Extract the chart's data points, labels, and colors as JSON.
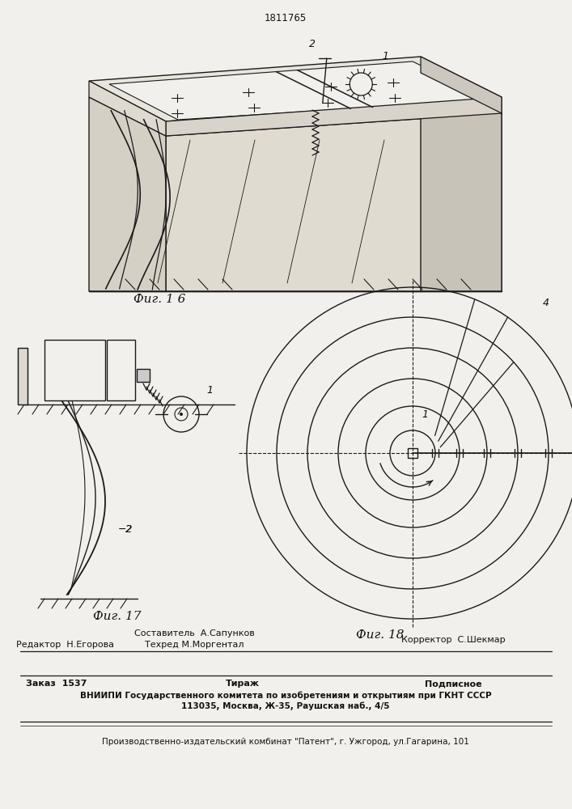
{
  "bg_color": "#f2f0ec",
  "header_text": "1811765",
  "fig16_label": "Фиг. 1 6",
  "fig17_label": "Фиг. 17",
  "fig18_label": "Фиг. 18",
  "footer": {
    "editor_label": "Редактор",
    "editor_name": "Н.Егорова",
    "composer_label": "Составитель",
    "composer_name": "А.Сапунков",
    "techred_label": "Техред",
    "techred_name": "М.Моргентал",
    "corrector_label": "Корректор",
    "corrector_name": "С.Шекмар",
    "order_label": "Заказ",
    "order_num": "1537",
    "tirazh_label": "Тираж",
    "podpisnoe_label": "Подписное",
    "vniiipi_line1": "ВНИИПИ Государственного комитета по изобретениям и открытиям при ГКНТ СССР",
    "vniiipi_line2": "113035, Москва, Ж-35, Раушская наб., 4/5",
    "production_line": "Производственно-издательский комбинат \"Патент\", г. Ужгород, ул.Гагарина, 101"
  },
  "line_color": "#1a1a1a",
  "text_color": "#111111"
}
